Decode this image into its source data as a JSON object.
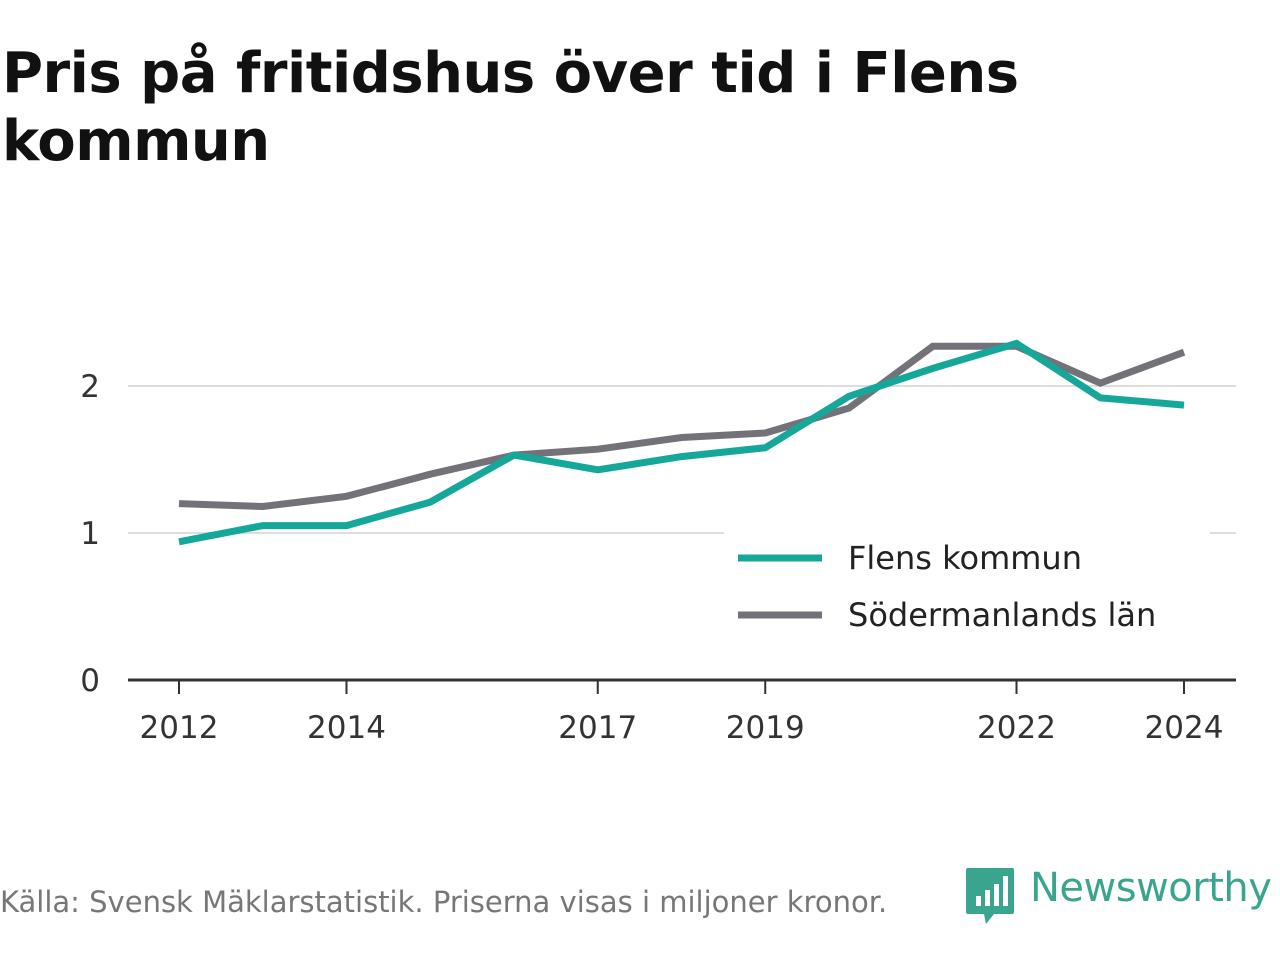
{
  "title": "Pris på fritidshus över tid i Flens kommun",
  "footer": "Källa: Svensk Mäklarstatistik. Priserna visas i miljoner kronor.",
  "brand": {
    "name": "Newsworthy",
    "icon": "newsworthy-chart-bubble-icon",
    "color": "#3aa58f"
  },
  "chart_data": {
    "type": "line",
    "x": [
      2012,
      2013,
      2014,
      2015,
      2016,
      2017,
      2018,
      2019,
      2020,
      2021,
      2022,
      2023,
      2024
    ],
    "x_tick_labels": [
      "2012",
      "2014",
      "2017",
      "2019",
      "2022",
      "2024"
    ],
    "y_tick_labels": [
      "0",
      "1",
      "2"
    ],
    "ylim": [
      0,
      2.5
    ],
    "grid": true,
    "legend_position": "bottom-right",
    "series": [
      {
        "name": "Flens kommun",
        "color": "#15a89a",
        "values": [
          0.94,
          1.05,
          1.05,
          1.21,
          1.53,
          1.43,
          1.52,
          1.58,
          1.93,
          2.12,
          2.29,
          1.92,
          1.87
        ]
      },
      {
        "name": "Södermanlands län",
        "color": "#737278",
        "values": [
          1.2,
          1.18,
          1.25,
          1.4,
          1.53,
          1.57,
          1.65,
          1.68,
          1.85,
          2.27,
          2.27,
          2.02,
          2.23
        ]
      }
    ]
  }
}
